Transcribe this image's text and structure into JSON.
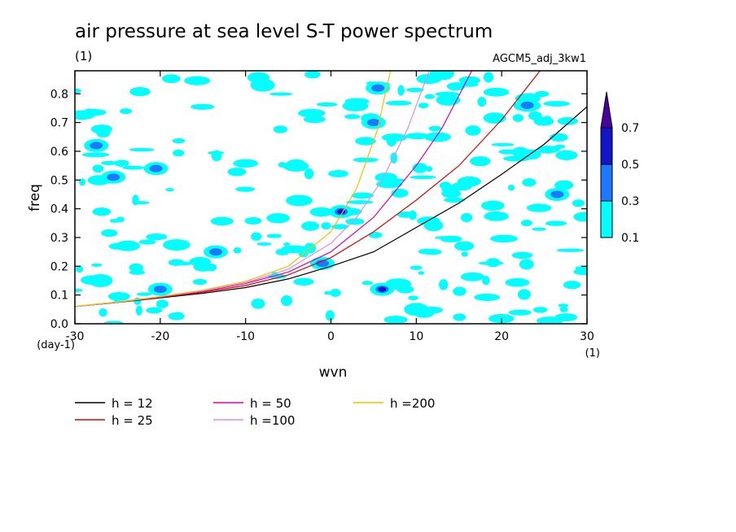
{
  "header": {
    "title": "air pressure at sea level S-T power spectrum",
    "unit": "(1)",
    "run_label": "AGCM5_adj_3kw1"
  },
  "axes": {
    "x": {
      "label": "wvn",
      "unit_label": "(1)",
      "min": -30,
      "max": 30,
      "ticks": [
        -30,
        -20,
        -10,
        0,
        10,
        20,
        30
      ],
      "tick_labels": [
        "-30",
        "-20",
        "-10",
        "0",
        "10",
        "20",
        "30"
      ]
    },
    "y": {
      "label": "freq",
      "unit_label": "(day-1)",
      "min": 0.0,
      "max": 0.88,
      "ticks": [
        0.0,
        0.1,
        0.2,
        0.3,
        0.4,
        0.5,
        0.6,
        0.7,
        0.8
      ],
      "tick_labels": [
        "0.0",
        "0.1",
        "0.2",
        "0.3",
        "0.4",
        "0.5",
        "0.6",
        "0.7",
        "0.8"
      ]
    }
  },
  "colorbar": {
    "levels": [
      "0.1",
      "0.3",
      "0.5",
      "0.7"
    ],
    "colors": [
      "#00ffff",
      "#1e78ff",
      "#1414c8",
      "#4b00a0"
    ]
  },
  "legend": [
    {
      "label": "h = 12",
      "color": "#000000"
    },
    {
      "label": "h = 25",
      "color": "#e00000"
    },
    {
      "label": "h = 50",
      "color": "#e000b0"
    },
    {
      "label": "h =100",
      "color": "#d890e0"
    },
    {
      "label": "h =200",
      "color": "#f0c000"
    }
  ],
  "chart_data": {
    "type": "heatmap",
    "title": "air pressure at sea level S-T power spectrum",
    "xlabel": "wvn",
    "ylabel": "freq",
    "xlim": [
      -30,
      30
    ],
    "ylim": [
      0.0,
      0.88
    ],
    "contour_levels": [
      0.1,
      0.3,
      0.5,
      0.7
    ],
    "blobs": [
      {
        "x": -27.5,
        "y": 0.62,
        "level": 0.3
      },
      {
        "x": -25.5,
        "y": 0.51,
        "level": 0.3
      },
      {
        "x": -20.5,
        "y": 0.54,
        "level": 0.3
      },
      {
        "x": -20,
        "y": 0.12,
        "level": 0.3
      },
      {
        "x": -13.5,
        "y": 0.25,
        "level": 0.3
      },
      {
        "x": 1.2,
        "y": 0.39,
        "level": 0.5
      },
      {
        "x": -1,
        "y": 0.21,
        "level": 0.3
      },
      {
        "x": 6,
        "y": 0.12,
        "level": 0.5
      },
      {
        "x": 5,
        "y": 0.7,
        "level": 0.3
      },
      {
        "x": 5.5,
        "y": 0.82,
        "level": 0.3
      },
      {
        "x": 23,
        "y": 0.76,
        "level": 0.3
      },
      {
        "x": 26.5,
        "y": 0.45,
        "level": 0.3
      },
      {
        "x": -8,
        "y": 0.83,
        "level": 0.1
      },
      {
        "x": 13,
        "y": 0.87,
        "level": 0.1
      },
      {
        "x": -27,
        "y": 0.15,
        "level": 0.1
      },
      {
        "x": 10,
        "y": 0.05,
        "level": 0.1
      }
    ],
    "series": [
      {
        "name": "h = 12",
        "x": [
          -30,
          -25,
          -20,
          -15,
          -10,
          -5,
          0,
          5,
          10,
          15,
          20,
          25,
          30
        ],
        "y": [
          0.06,
          0.074,
          0.09,
          0.106,
          0.126,
          0.156,
          0.2,
          0.25,
          0.335,
          0.42,
          0.52,
          0.625,
          0.755
        ]
      },
      {
        "name": "h = 25",
        "x": [
          -30,
          -25,
          -20,
          -15,
          -10,
          -5,
          0,
          5,
          10,
          15,
          20,
          24.5
        ],
        "y": [
          0.06,
          0.075,
          0.092,
          0.11,
          0.133,
          0.17,
          0.23,
          0.32,
          0.43,
          0.55,
          0.71,
          0.88
        ]
      },
      {
        "name": "h = 50",
        "x": [
          -30,
          -25,
          -20,
          -15,
          -10,
          -5,
          0,
          5,
          10,
          13,
          16.5
        ],
        "y": [
          0.06,
          0.075,
          0.093,
          0.113,
          0.14,
          0.18,
          0.25,
          0.37,
          0.55,
          0.68,
          0.88
        ]
      },
      {
        "name": "h =100",
        "x": [
          -30,
          -25,
          -20,
          -15,
          -10,
          -5,
          0,
          3,
          6,
          9,
          11.5
        ],
        "y": [
          0.06,
          0.075,
          0.094,
          0.115,
          0.143,
          0.19,
          0.28,
          0.37,
          0.5,
          0.68,
          0.88
        ]
      },
      {
        "name": "h =200",
        "x": [
          -30,
          -25,
          -20,
          -15,
          -10,
          -5,
          0,
          3,
          5.5,
          6.5,
          7
        ],
        "y": [
          0.06,
          0.076,
          0.095,
          0.117,
          0.147,
          0.2,
          0.32,
          0.47,
          0.68,
          0.82,
          0.88
        ]
      }
    ]
  }
}
